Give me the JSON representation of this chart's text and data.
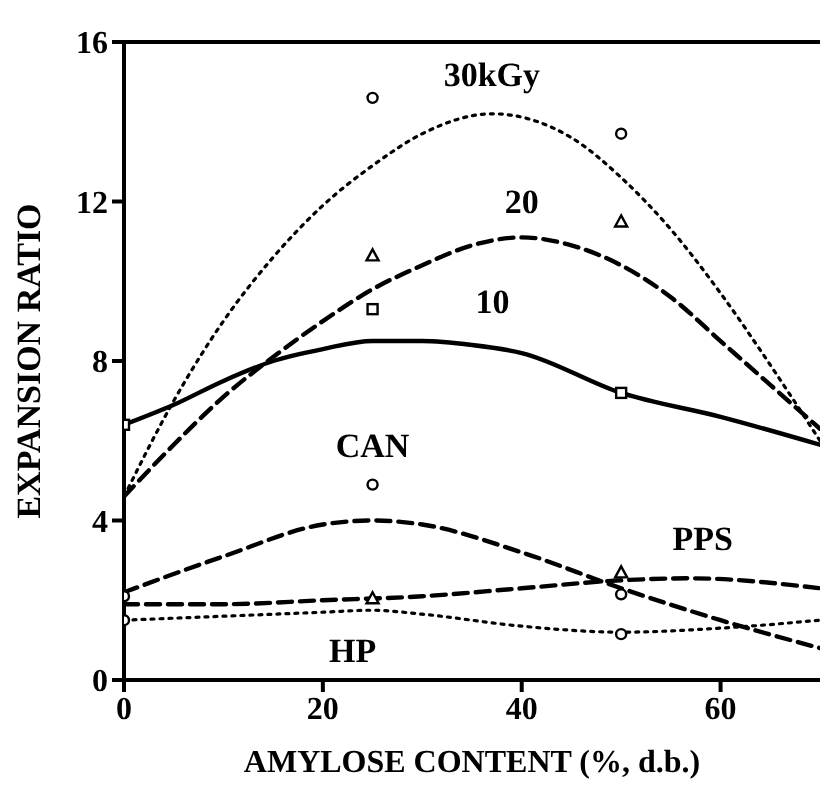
{
  "chart_data": {
    "type": "line",
    "xlabel": "AMYLOSE CONTENT (%, d.b.)",
    "ylabel": "EXPANSION RATIO",
    "xlim": [
      0,
      70
    ],
    "xticks": [
      0,
      20,
      40,
      60
    ],
    "ylim": [
      0,
      16
    ],
    "yticks": [
      0,
      4,
      8,
      12,
      16
    ],
    "grid": false,
    "series": [
      {
        "name": "30kGy",
        "color": "#000000",
        "line_style": "dotted",
        "x": [
          0,
          5,
          10,
          15,
          20,
          25,
          30,
          37,
          45,
          50,
          55,
          60,
          65,
          70
        ],
        "values": [
          4.6,
          7.0,
          9.0,
          10.6,
          11.9,
          12.9,
          13.7,
          14.2,
          13.6,
          12.6,
          11.3,
          9.7,
          7.9,
          6.0
        ]
      },
      {
        "name": "20",
        "color": "#000000",
        "line_style": "dashed",
        "x": [
          0,
          5,
          10,
          15,
          20,
          25,
          30,
          35,
          40,
          45,
          50,
          55,
          60,
          65,
          70
        ],
        "values": [
          4.6,
          5.9,
          7.1,
          8.1,
          9.0,
          9.8,
          10.4,
          10.9,
          11.1,
          10.9,
          10.4,
          9.6,
          8.5,
          7.4,
          6.3
        ]
      },
      {
        "name": "10",
        "color": "#000000",
        "line_style": "solid",
        "x": [
          0,
          5,
          10,
          15,
          20,
          25,
          30,
          35,
          40,
          50,
          60,
          70
        ],
        "values": [
          6.4,
          6.9,
          7.5,
          8.0,
          8.3,
          8.5,
          8.5,
          8.4,
          8.2,
          7.2,
          6.6,
          5.9
        ]
      },
      {
        "name": "CAN",
        "color": "#000000",
        "line_style": "dashed",
        "x": [
          0,
          10,
          20,
          25,
          30,
          40,
          50,
          60,
          70
        ],
        "values": [
          2.2,
          3.1,
          3.9,
          4.0,
          3.9,
          3.2,
          2.3,
          1.5,
          0.8
        ]
      },
      {
        "name": "PPS",
        "color": "#000000",
        "line_style": "dashed",
        "x": [
          0,
          10,
          20,
          30,
          40,
          50,
          57,
          70
        ],
        "values": [
          1.9,
          1.9,
          2.0,
          2.1,
          2.3,
          2.5,
          2.55,
          2.3
        ]
      },
      {
        "name": "HP",
        "color": "#000000",
        "line_style": "dotted",
        "x": [
          0,
          20,
          25,
          30,
          40,
          50,
          60,
          70
        ],
        "values": [
          1.5,
          1.7,
          1.75,
          1.65,
          1.35,
          1.2,
          1.3,
          1.5
        ]
      },
      {
        "type": "scatter",
        "color": "#000000",
        "marker": "circle",
        "x": [
          25,
          50
        ],
        "values": [
          14.6,
          13.7
        ]
      },
      {
        "type": "scatter",
        "color": "#000000",
        "marker": "triangle",
        "x": [
          25,
          50
        ],
        "values": [
          10.65,
          11.5
        ]
      },
      {
        "type": "scatter",
        "color": "#000000",
        "marker": "square",
        "x": [
          0,
          25,
          50
        ],
        "values": [
          6.4,
          9.3,
          7.2
        ]
      },
      {
        "type": "scatter",
        "color": "#000000",
        "marker": "circle",
        "x": [
          0,
          25,
          50
        ],
        "values": [
          2.1,
          4.9,
          2.15
        ]
      },
      {
        "type": "scatter",
        "color": "#000000",
        "marker": "triangle",
        "x": [
          25,
          50
        ],
        "values": [
          2.05,
          2.7
        ]
      },
      {
        "type": "scatter",
        "color": "#000000",
        "marker": "circle",
        "x": [
          0,
          50
        ],
        "values": [
          1.5,
          1.15
        ]
      }
    ]
  }
}
